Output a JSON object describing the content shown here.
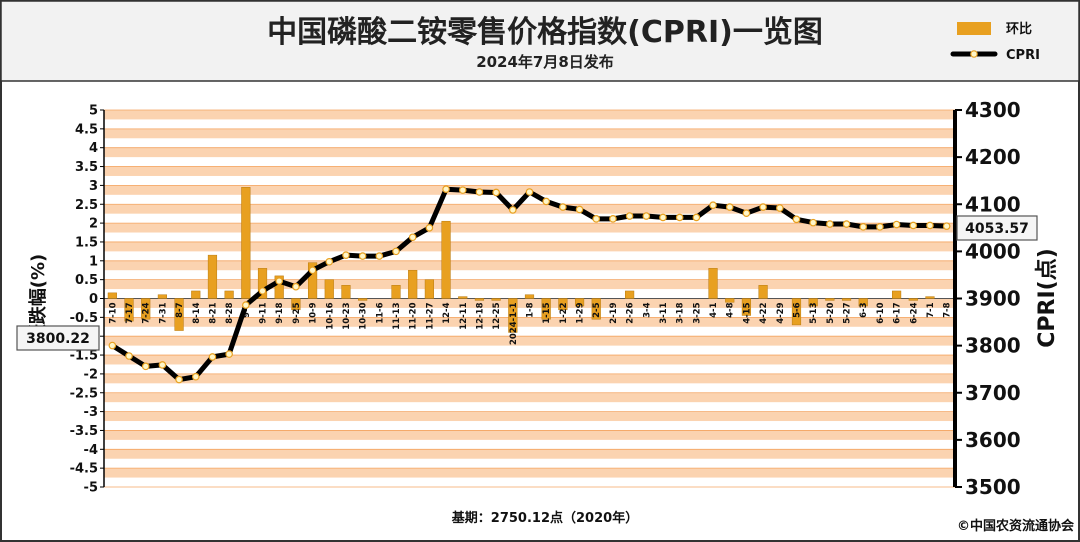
{
  "header": {
    "title": "中国磷酸二铵零售价格指数(CPRI)一览图",
    "subtitle": "2024年7月8日发布"
  },
  "legend": {
    "bar_label": "环比",
    "line_label": "CPRI"
  },
  "footer": {
    "base": "基期：2750.12点（2020年）",
    "copyright": "©中国农资流通协会"
  },
  "callouts": {
    "first_value": "3800.22",
    "last_value": "4053.57"
  },
  "colors": {
    "band": "#fbd3b0",
    "gridline": "#f4a460",
    "bar": "#e8a020",
    "line": "#000000",
    "marker": "#fff6c8"
  },
  "chart_data": {
    "type": "bar",
    "title": "中国磷酸二铵零售价格指数(CPRI)一览图",
    "subtitle": "2024年7月8日发布",
    "ylabel_left": "涨跌幅(%)",
    "ylabel_right": "CPRI(点)",
    "ylim_left": [
      -5,
      5
    ],
    "ylim_right": [
      3500,
      4300
    ],
    "y_ticks_left": [
      "5",
      "4.5",
      "4",
      "3.5",
      "3",
      "2.5",
      "2",
      "1.5",
      "1",
      "0.5",
      "0",
      "-0.5",
      "-1",
      "-1.5",
      "-2",
      "-2.5",
      "-3",
      "-3.5",
      "-4",
      "-4.5",
      "-5"
    ],
    "y_ticks_right": [
      "4300",
      "4200",
      "4100",
      "4000",
      "3900",
      "3800",
      "3700",
      "3600",
      "3500"
    ],
    "categories": [
      "7-10",
      "7-17",
      "7-24",
      "7-31",
      "8-7",
      "8-14",
      "8-21",
      "8-28",
      "9-4",
      "9-11",
      "9-18",
      "9-25",
      "10-9",
      "10-16",
      "10-23",
      "10-30",
      "11-6",
      "11-13",
      "11-20",
      "11-27",
      "12-4",
      "12-11",
      "12-18",
      "12-25",
      "2024-1-1",
      "1-8",
      "1-15",
      "1-22",
      "1-29",
      "2-5",
      "2-19",
      "2-26",
      "3-4",
      "3-11",
      "3-18",
      "3-25",
      "4-1",
      "4-8",
      "4-15",
      "4-22",
      "4-29",
      "5-6",
      "5-13",
      "5-20",
      "5-27",
      "6-3",
      "6-10",
      "6-17",
      "6-24",
      "7-1",
      "7-8"
    ],
    "x_tick_labels": [
      "7-10",
      "7-17",
      "7-24",
      "7-31",
      "8-7",
      "8-14",
      "8-21",
      "8-28",
      "9-4",
      "9-11",
      "9-18",
      "9-25",
      "10-9",
      "10-16",
      "10-23",
      "10-30",
      "11-6",
      "11-13",
      "11-20",
      "11-27",
      "12-4",
      "12-11",
      "12-18",
      "12-25",
      "2024-1-1",
      "1-8",
      "1-15",
      "1-22",
      "1-29",
      "2-5",
      "2-19",
      "2-26",
      "3-4",
      "3-11",
      "3-18",
      "3-25",
      "4-1",
      "4-8",
      "4-15",
      "4-22",
      "4-29",
      "5-6",
      "5-13",
      "5-20",
      "5-27",
      "6-3",
      "6-10",
      "6-17",
      "6-24",
      "7-1",
      "7-8"
    ],
    "series": [
      {
        "name": "环比",
        "axis": "left",
        "type": "bar",
        "values": [
          0.15,
          -0.6,
          -0.55,
          0.1,
          -0.85,
          0.2,
          1.15,
          0.2,
          2.95,
          0.8,
          0.6,
          -0.3,
          0.95,
          0.5,
          0.35,
          -0.05,
          0.0,
          0.35,
          0.75,
          0.5,
          2.05,
          0.05,
          -0.05,
          -0.05,
          -0.9,
          0.1,
          -0.55,
          -0.3,
          -0.2,
          -0.55,
          0.0,
          0.2,
          0.0,
          0.0,
          0.0,
          0.0,
          0.8,
          -0.1,
          -0.45,
          0.35,
          0.0,
          -0.7,
          -0.2,
          -0.05,
          -0.05,
          -0.2,
          0.0,
          0.2,
          -0.05,
          0.05,
          0.0
        ]
      },
      {
        "name": "CPRI",
        "axis": "right",
        "type": "line",
        "values": [
          3800.22,
          3778,
          3756,
          3759,
          3728,
          3734,
          3776,
          3782,
          3886,
          3916,
          3937,
          3925,
          3960,
          3978,
          3992,
          3990,
          3990,
          4000,
          4030,
          4050,
          4132,
          4130,
          4126,
          4125,
          4088,
          4126,
          4106,
          4094,
          4089,
          4069,
          4069,
          4075,
          4075,
          4072,
          4072,
          4072,
          4098,
          4094,
          4081,
          4094,
          4092,
          4068,
          4061,
          4058,
          4058,
          4052,
          4052,
          4057,
          4055,
          4055,
          4053.57
        ]
      }
    ]
  }
}
